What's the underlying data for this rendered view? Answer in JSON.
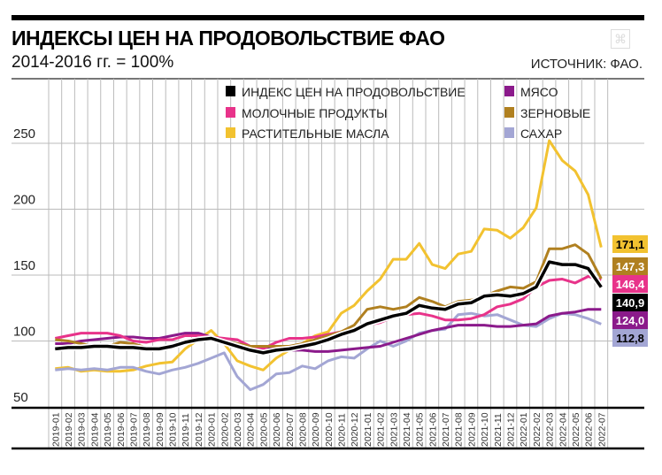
{
  "header": {
    "title": "ИНДЕКСЫ ЦЕН НА ПРОДОВОЛЬСТВИЕ ФАО",
    "subtitle": "2014-2016 гг. = 100%",
    "source": "ИСТОЧНИК: ФАО."
  },
  "chart_data": {
    "type": "line",
    "title": "ИНДЕКСЫ ЦЕН НА ПРОДОВОЛЬСТВИЕ ФАО",
    "subtitle": "2014-2016 гг. = 100%",
    "ylim": [
      50,
      280
    ],
    "yticks": [
      50,
      100,
      150,
      200,
      250
    ],
    "grid": true,
    "legend": "top",
    "x": [
      "2019-01",
      "2019-02",
      "2019-03",
      "2019-04",
      "2019-05",
      "2019-06",
      "2019-07",
      "2019-08",
      "2019-09",
      "2019-10",
      "2019-11",
      "2019-12",
      "2020-01",
      "2020-02",
      "2020-03",
      "2020-04",
      "2020-05",
      "2020-06",
      "2020-07",
      "2020-08",
      "2020-09",
      "2020-10",
      "2020-11",
      "2020-12",
      "2021-01",
      "2021-02",
      "2021-03",
      "2021-04",
      "2021-05",
      "2021-06",
      "2021-07",
      "2021-08",
      "2021-09",
      "2021-10",
      "2021-11",
      "2021-12",
      "2022-01",
      "2022-02",
      "2022-03",
      "2022-04",
      "2022-05",
      "2022-06",
      "2022-07"
    ],
    "series": [
      {
        "name": "РАСТИТЕЛЬНЫЕ МАСЛА",
        "color": "#f2c230",
        "end_label": "171,1",
        "values": [
          79,
          80,
          77,
          78,
          77,
          77,
          78,
          81,
          83,
          84,
          94,
          101,
          108,
          98,
          85,
          81,
          78,
          87,
          93,
          98,
          104,
          107,
          121,
          127,
          138,
          147,
          162,
          162,
          174,
          158,
          155,
          166,
          168,
          185,
          184,
          178,
          186,
          201,
          252,
          237,
          229,
          211,
          171.1
        ]
      },
      {
        "name": "САХАР",
        "color": "#a3a6d4",
        "end_label": "112,8",
        "values": [
          78,
          79,
          78,
          79,
          78,
          80,
          80,
          77,
          75,
          78,
          80,
          83,
          87,
          91,
          73,
          63,
          67,
          75,
          76,
          81,
          79,
          85,
          88,
          87,
          94,
          100,
          96,
          100,
          106,
          108,
          109,
          120,
          121,
          119,
          120,
          116,
          112,
          111,
          117,
          121,
          120,
          117,
          112.8
        ]
      },
      {
        "name": "МЯСО",
        "color": "#8b1a8b",
        "end_label": "124,0",
        "values": [
          98,
          98,
          100,
          101,
          102,
          103,
          103,
          102,
          102,
          104,
          106,
          106,
          103,
          100,
          98,
          96,
          95,
          95,
          93,
          93,
          92,
          92,
          93,
          94,
          95,
          96,
          99,
          102,
          105,
          108,
          110,
          112,
          112,
          112,
          111,
          111,
          112,
          113,
          119,
          121,
          122,
          124,
          124.0
        ]
      },
      {
        "name": "МОЛОЧНЫЕ ПРОДУКТЫ",
        "color": "#e8338a",
        "end_label": "146,4",
        "values": [
          102,
          104,
          106,
          106,
          106,
          104,
          100,
          99,
          101,
          101,
          104,
          104,
          103,
          102,
          101,
          96,
          94,
          99,
          102,
          102,
          103,
          105,
          107,
          109,
          112,
          114,
          118,
          120,
          121,
          119,
          116,
          116,
          117,
          120,
          126,
          128,
          132,
          141,
          146,
          147,
          144,
          149,
          146.4
        ]
      },
      {
        "name": "ЗЕРНОВЫЕ",
        "color": "#b08020",
        "end_label": "147,3",
        "values": [
          101,
          100,
          98,
          96,
          96,
          99,
          98,
          95,
          95,
          97,
          98,
          100,
          102,
          100,
          98,
          96,
          96,
          96,
          96,
          98,
          101,
          104,
          107,
          112,
          124,
          126,
          124,
          126,
          133,
          130,
          126,
          130,
          131,
          134,
          138,
          141,
          140,
          145,
          170,
          170,
          173,
          166,
          147.3
        ]
      },
      {
        "name": "ИНДЕКС ЦЕН НА ПРОДОВОЛЬСТВИЕ",
        "color": "#000000",
        "end_label": "140,9",
        "values": [
          94,
          95,
          95,
          96,
          96,
          95,
          95,
          94,
          94,
          96,
          99,
          101,
          102,
          99,
          96,
          93,
          91,
          93,
          94,
          96,
          98,
          101,
          105,
          108,
          113,
          116,
          119,
          121,
          127,
          125,
          124,
          128,
          129,
          134,
          135,
          134,
          136,
          141,
          160,
          158,
          158,
          155,
          140.9
        ]
      }
    ],
    "legend_order": [
      [
        "ИНДЕКС ЦЕН НА ПРОДОВОЛЬСТВИЕ",
        "МЯСО"
      ],
      [
        "МОЛОЧНЫЕ ПРОДУКТЫ",
        "ЗЕРНОВЫЕ"
      ],
      [
        "РАСТИТЕЛЬНЫЕ МАСЛА",
        "САХАР"
      ]
    ]
  }
}
